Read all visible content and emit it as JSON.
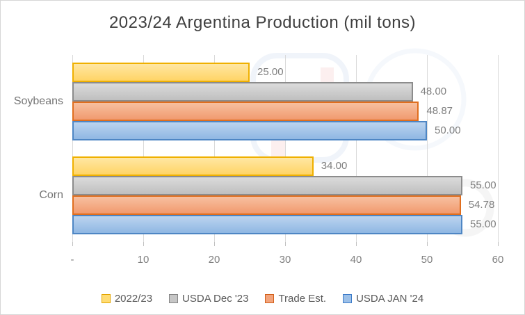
{
  "chart_data": {
    "type": "bar",
    "orientation": "horizontal",
    "title": "2023/24 Argentina Production (mil tons)",
    "categories": [
      "Soybeans",
      "Corn"
    ],
    "series": [
      {
        "name": "2022/23",
        "values": [
          25.0,
          34.0
        ],
        "labels": [
          "25.00",
          "34.00"
        ],
        "fill_top": "#FFE7A3",
        "fill_bottom": "#FFD466",
        "border": "#EFB000",
        "legend_fill": "#FFDC73",
        "legend_border": "#E3A400"
      },
      {
        "name": "USDA Dec '23",
        "values": [
          48.0,
          55.0
        ],
        "labels": [
          "48.00",
          "55.00"
        ],
        "fill_top": "#DBDBDB",
        "fill_bottom": "#BFBFBF",
        "border": "#8C8C8C",
        "legend_fill": "#C6C6C6",
        "legend_border": "#858585"
      },
      {
        "name": "Trade Est.",
        "values": [
          48.87,
          54.78
        ],
        "labels": [
          "48.87",
          "54.78"
        ],
        "fill_top": "#F7C0A0",
        "fill_bottom": "#F19A6F",
        "border": "#E06E1E",
        "legend_fill": "#F2A47C",
        "legend_border": "#D2601A"
      },
      {
        "name": "USDA JAN '24",
        "values": [
          50.0,
          55.0
        ],
        "labels": [
          "50.00",
          "55.00"
        ],
        "fill_top": "#BCD4EF",
        "fill_bottom": "#8FB7E3",
        "border": "#4E86C4",
        "legend_fill": "#9CC0E8",
        "legend_border": "#3D7CC9"
      }
    ],
    "x_ticks": [
      "-",
      "10",
      "20",
      "30",
      "40",
      "50",
      "60"
    ],
    "x_min": 0,
    "x_max": 60,
    "grid": true,
    "legend_position": "bottom",
    "colors": {
      "grid": "#D9D9D9",
      "axis_tick": "#BFBFBF",
      "title_text": "#404040",
      "label_text": "#808080",
      "category_text": "#757575",
      "legend_text": "#595959"
    }
  }
}
